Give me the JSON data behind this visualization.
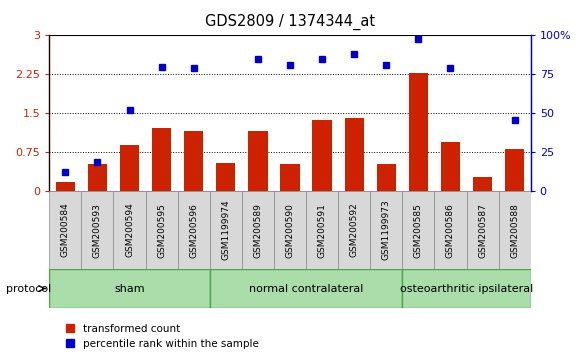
{
  "title": "GDS2809 / 1374344_at",
  "categories": [
    "GSM200584",
    "GSM200593",
    "GSM200594",
    "GSM200595",
    "GSM200596",
    "GSM1199974",
    "GSM200589",
    "GSM200590",
    "GSM200591",
    "GSM200592",
    "GSM1199973",
    "GSM200585",
    "GSM200586",
    "GSM200587",
    "GSM200588"
  ],
  "red_bars": [
    0.18,
    0.52,
    0.88,
    1.22,
    1.15,
    0.55,
    1.15,
    0.52,
    1.37,
    1.4,
    0.52,
    2.27,
    0.95,
    0.28,
    0.82
  ],
  "blue_dots_left_scale": [
    0.38,
    0.58,
    1.58,
    2.42,
    2.38,
    null,
    2.55,
    2.42,
    2.55,
    2.65,
    2.42,
    2.95,
    2.38,
    null,
    1.38
  ],
  "blue_dots_right": [
    12,
    19,
    52,
    80,
    79,
    null,
    85,
    81,
    85,
    88,
    81,
    98,
    79,
    null,
    46
  ],
  "groups": [
    {
      "label": "sham",
      "start": 0,
      "end": 4
    },
    {
      "label": "normal contralateral",
      "start": 5,
      "end": 10
    },
    {
      "label": "osteoarthritic ipsilateral",
      "start": 11,
      "end": 14
    }
  ],
  "ylim_left": [
    0,
    3
  ],
  "ylim_right": [
    0,
    100
  ],
  "yticks_left": [
    0,
    0.75,
    1.5,
    2.25,
    3
  ],
  "yticks_right": [
    0,
    25,
    50,
    75,
    100
  ],
  "ytick_labels_left": [
    "0",
    "0.75",
    "1.5",
    "2.25",
    "3"
  ],
  "ytick_labels_right": [
    "0",
    "25",
    "50",
    "75",
    "100%"
  ],
  "bar_color": "#cc2200",
  "dot_color": "#0000cc",
  "protocol_label": "protocol"
}
